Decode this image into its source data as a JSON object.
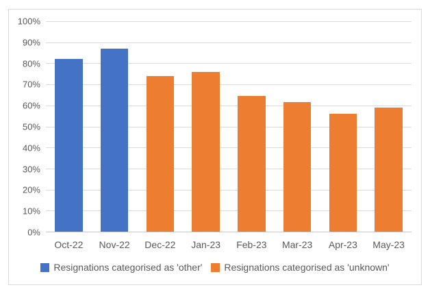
{
  "chart": {
    "background": "#ffffff",
    "frame_border_color": "#d9d9d9",
    "gridline_color": "#d9d9d9",
    "axis_line_color": "#c8c8c8",
    "text_color": "#595959"
  },
  "chart_data": {
    "type": "bar",
    "categories": [
      "Oct-22",
      "Nov-22",
      "Dec-22",
      "Jan-23",
      "Feb-23",
      "Mar-23",
      "Apr-23",
      "May-23"
    ],
    "series": [
      {
        "name": "Resignations categorised as 'other'",
        "color": "#4472C4",
        "values": [
          82,
          87,
          null,
          null,
          null,
          null,
          null,
          null
        ]
      },
      {
        "name": "Resignations categorised as 'unknown'",
        "color": "#ED7D31",
        "values": [
          null,
          null,
          74,
          76,
          64.5,
          61.5,
          56,
          59
        ]
      }
    ],
    "title": "",
    "xlabel": "",
    "ylabel": "",
    "ylim": [
      0,
      100
    ],
    "ytick_step": 10,
    "ytick_labels": [
      "0%",
      "10%",
      "20%",
      "30%",
      "40%",
      "50%",
      "60%",
      "70%",
      "80%",
      "90%",
      "100%"
    ],
    "grid": true,
    "legend_position": "bottom"
  }
}
